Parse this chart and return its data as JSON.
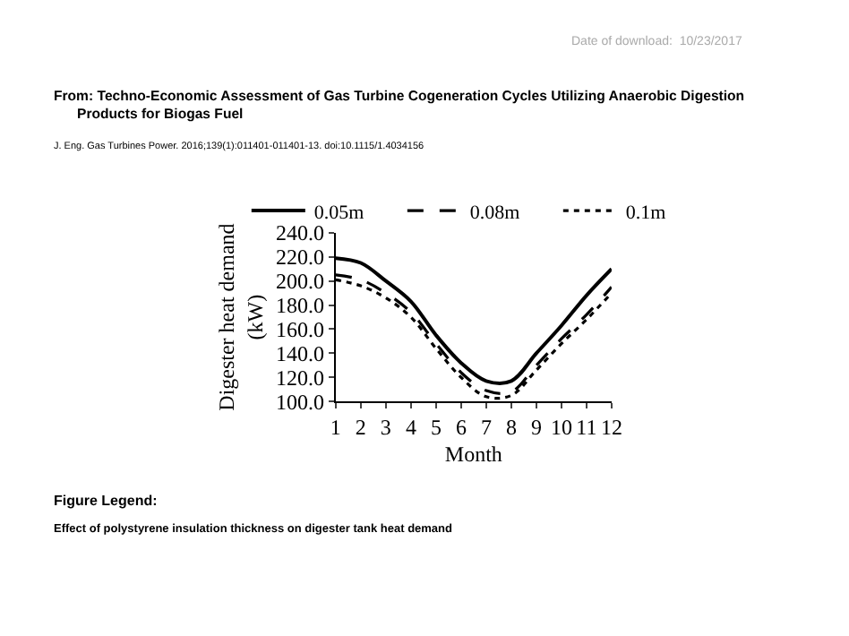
{
  "chart_data": {
    "type": "line",
    "title": "From: Techno-Economic Assessment of Gas Turbine Cogeneration Cycles Utilizing Anaerobic Digestion\nProducts for Biogas Fuel",
    "annotations": [
      "Date of download:  10/23/2017",
      "J. Eng. Gas Turbines Power. 2016;139(1):011401-011401-13. doi:10.1115/1.4034156",
      "Figure Legend:",
      "Effect of polystyrene insulation thickness on digester tank heat demand"
    ],
    "xlabel": "Month",
    "ylabel": "Digester heat demand\n(kW)",
    "x": [
      1,
      2,
      3,
      4,
      5,
      6,
      7,
      8,
      9,
      10,
      11,
      12
    ],
    "series": [
      {
        "name": "0.05m",
        "color": "#000000",
        "line_style": "solid",
        "values": [
          219,
          215,
          200,
          183,
          155,
          132,
          117,
          117,
          140,
          163,
          188,
          210
        ]
      },
      {
        "name": "0.08m",
        "color": "#000000",
        "line_style": "dashed",
        "values": [
          205,
          201,
          190,
          174,
          148,
          124,
          109,
          108,
          130,
          152,
          172,
          195
        ]
      },
      {
        "name": "0.1m",
        "color": "#000000",
        "line_style": "dotted",
        "values": [
          201,
          196,
          186,
          170,
          144,
          120,
          104,
          105,
          126,
          148,
          168,
          190
        ]
      }
    ],
    "xlim": [
      1,
      12
    ],
    "xticks": [
      1,
      2,
      3,
      4,
      5,
      6,
      7,
      8,
      9,
      10,
      11,
      12
    ],
    "ylim": [
      100,
      240
    ],
    "yticks": [
      {
        "value": 100,
        "label": "100.0"
      },
      {
        "value": 120,
        "label": "120.0"
      },
      {
        "value": 140,
        "label": "140.0"
      },
      {
        "value": 160,
        "label": "160.0"
      },
      {
        "value": 180,
        "label": "180.0"
      },
      {
        "value": 200,
        "label": "200.0"
      },
      {
        "value": 220,
        "label": "220.0"
      },
      {
        "value": 240,
        "label": "240.0"
      }
    ],
    "legend": "top",
    "marker": "none"
  }
}
